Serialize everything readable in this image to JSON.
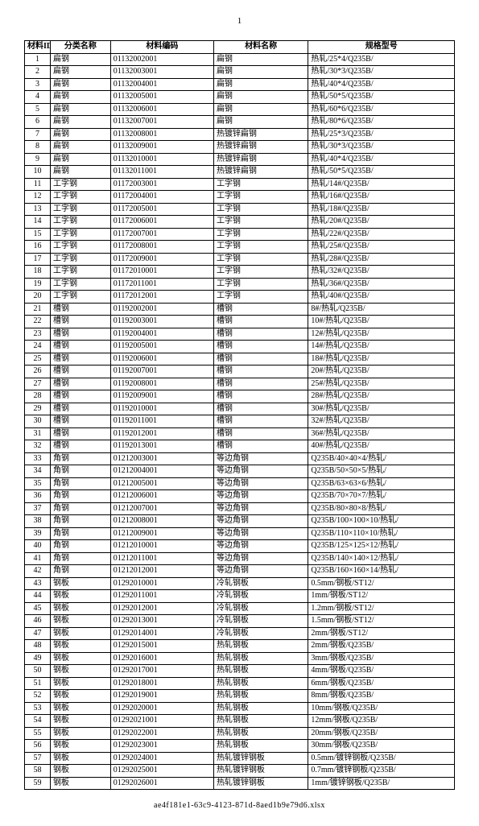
{
  "page_number": "1",
  "footer": "ae4f181e1-63c9-4123-871d-8aed1b9e79d6.xlsx",
  "columns": [
    "材料ID",
    "分类名称",
    "材料编码",
    "材料名称",
    "规格型号"
  ],
  "rows": [
    [
      "1",
      "扁钢",
      "01132002001",
      "扁钢",
      "热轧/25*4/Q235B/"
    ],
    [
      "2",
      "扁钢",
      "01132003001",
      "扁钢",
      "热轧/30*3/Q235B/"
    ],
    [
      "3",
      "扁钢",
      "01132004001",
      "扁钢",
      "热轧/40*4/Q235B/"
    ],
    [
      "4",
      "扁钢",
      "01132005001",
      "扁钢",
      "热轧/50*5/Q235B/"
    ],
    [
      "5",
      "扁钢",
      "01132006001",
      "扁钢",
      "热轧/60*6/Q235B/"
    ],
    [
      "6",
      "扁钢",
      "01132007001",
      "扁钢",
      "热轧/80*6/Q235B/"
    ],
    [
      "7",
      "扁钢",
      "01132008001",
      "热镀锌扁钢",
      "热轧/25*3/Q235B/"
    ],
    [
      "8",
      "扁钢",
      "01132009001",
      "热镀锌扁钢",
      "热轧/30*3/Q235B/"
    ],
    [
      "9",
      "扁钢",
      "01132010001",
      "热镀锌扁钢",
      "热轧/40*4/Q235B/"
    ],
    [
      "10",
      "扁钢",
      "01132011001",
      "热镀锌扁钢",
      "热轧/50*5/Q235B/"
    ],
    [
      "11",
      "工字钢",
      "01172003001",
      "工字钢",
      "热轧/14#/Q235B/"
    ],
    [
      "12",
      "工字钢",
      "01172004001",
      "工字钢",
      "热轧/16#/Q235B/"
    ],
    [
      "13",
      "工字钢",
      "01172005001",
      "工字钢",
      "热轧/18#/Q235B/"
    ],
    [
      "14",
      "工字钢",
      "01172006001",
      "工字钢",
      "热轧/20#/Q235B/"
    ],
    [
      "15",
      "工字钢",
      "01172007001",
      "工字钢",
      "热轧/22#/Q235B/"
    ],
    [
      "16",
      "工字钢",
      "01172008001",
      "工字钢",
      "热轧/25#/Q235B/"
    ],
    [
      "17",
      "工字钢",
      "01172009001",
      "工字钢",
      "热轧/28#/Q235B/"
    ],
    [
      "18",
      "工字钢",
      "01172010001",
      "工字钢",
      "热轧/32#/Q235B/"
    ],
    [
      "19",
      "工字钢",
      "01172011001",
      "工字钢",
      "热轧/36#/Q235B/"
    ],
    [
      "20",
      "工字钢",
      "01172012001",
      "工字钢",
      "热轧/40#/Q235B/"
    ],
    [
      "21",
      "槽钢",
      "01192002001",
      "槽钢",
      "8#/热轧/Q235B/"
    ],
    [
      "22",
      "槽钢",
      "01192003001",
      "槽钢",
      "10#/热轧/Q235B/"
    ],
    [
      "23",
      "槽钢",
      "01192004001",
      "槽钢",
      "12#/热轧/Q235B/"
    ],
    [
      "24",
      "槽钢",
      "01192005001",
      "槽钢",
      "14#/热轧/Q235B/"
    ],
    [
      "25",
      "槽钢",
      "01192006001",
      "槽钢",
      "18#/热轧/Q235B/"
    ],
    [
      "26",
      "槽钢",
      "01192007001",
      "槽钢",
      "20#/热轧/Q235B/"
    ],
    [
      "27",
      "槽钢",
      "01192008001",
      "槽钢",
      "25#/热轧/Q235B/"
    ],
    [
      "28",
      "槽钢",
      "01192009001",
      "槽钢",
      "28#/热轧/Q235B/"
    ],
    [
      "29",
      "槽钢",
      "01192010001",
      "槽钢",
      "30#/热轧/Q235B/"
    ],
    [
      "30",
      "槽钢",
      "01192011001",
      "槽钢",
      "32#/热轧/Q235B/"
    ],
    [
      "31",
      "槽钢",
      "01192012001",
      "槽钢",
      "36#/热轧/Q235B/"
    ],
    [
      "32",
      "槽钢",
      "01192013001",
      "槽钢",
      "40#/热轧/Q235B/"
    ],
    [
      "33",
      "角钢",
      "01212003001",
      "等边角钢",
      "Q235B/40×40×4/热轧/"
    ],
    [
      "34",
      "角钢",
      "01212004001",
      "等边角钢",
      "Q235B/50×50×5/热轧/"
    ],
    [
      "35",
      "角钢",
      "01212005001",
      "等边角钢",
      "Q235B/63×63×6/热轧/"
    ],
    [
      "36",
      "角钢",
      "01212006001",
      "等边角钢",
      "Q235B/70×70×7/热轧/"
    ],
    [
      "37",
      "角钢",
      "01212007001",
      "等边角钢",
      "Q235B/80×80×8/热轧/"
    ],
    [
      "38",
      "角钢",
      "01212008001",
      "等边角钢",
      "Q235B/100×100×10/热轧/"
    ],
    [
      "39",
      "角钢",
      "01212009001",
      "等边角钢",
      "Q235B/110×110×10/热轧/"
    ],
    [
      "40",
      "角钢",
      "01212010001",
      "等边角钢",
      "Q235B/125×125×12/热轧/"
    ],
    [
      "41",
      "角钢",
      "01212011001",
      "等边角钢",
      "Q235B/140×140×12/热轧/"
    ],
    [
      "42",
      "角钢",
      "01212012001",
      "等边角钢",
      "Q235B/160×160×14/热轧/"
    ],
    [
      "43",
      "钢板",
      "01292010001",
      "冷轧钢板",
      "0.5mm/钢板/ST12/"
    ],
    [
      "44",
      "钢板",
      "01292011001",
      "冷轧钢板",
      "1mm/钢板/ST12/"
    ],
    [
      "45",
      "钢板",
      "01292012001",
      "冷轧钢板",
      "1.2mm/钢板/ST12/"
    ],
    [
      "46",
      "钢板",
      "01292013001",
      "冷轧钢板",
      "1.5mm/钢板/ST12/"
    ],
    [
      "47",
      "钢板",
      "01292014001",
      "冷轧钢板",
      "2mm/钢板/ST12/"
    ],
    [
      "48",
      "钢板",
      "01292015001",
      "热轧钢板",
      "2mm/钢板/Q235B/"
    ],
    [
      "49",
      "钢板",
      "01292016001",
      "热轧钢板",
      "3mm/钢板/Q235B/"
    ],
    [
      "50",
      "钢板",
      "01292017001",
      "热轧钢板",
      "4mm/钢板/Q235B/"
    ],
    [
      "51",
      "钢板",
      "01292018001",
      "热轧钢板",
      "6mm/钢板/Q235B/"
    ],
    [
      "52",
      "钢板",
      "01292019001",
      "热轧钢板",
      "8mm/钢板/Q235B/"
    ],
    [
      "53",
      "钢板",
      "01292020001",
      "热轧钢板",
      "10mm/钢板/Q235B/"
    ],
    [
      "54",
      "钢板",
      "01292021001",
      "热轧钢板",
      "12mm/钢板/Q235B/"
    ],
    [
      "55",
      "钢板",
      "01292022001",
      "热轧钢板",
      "20mm/钢板/Q235B/"
    ],
    [
      "56",
      "钢板",
      "01292023001",
      "热轧钢板",
      "30mm/钢板/Q235B/"
    ],
    [
      "57",
      "钢板",
      "01292024001",
      "热轧镀锌钢板",
      "0.5mm/镀锌钢板/Q235B/"
    ],
    [
      "58",
      "钢板",
      "01292025001",
      "热轧镀锌钢板",
      "0.7mm/镀锌钢板/Q235B/"
    ],
    [
      "59",
      "钢板",
      "01292026001",
      "热轧镀锌钢板",
      "1mm/镀锌钢板/Q235B/"
    ]
  ]
}
